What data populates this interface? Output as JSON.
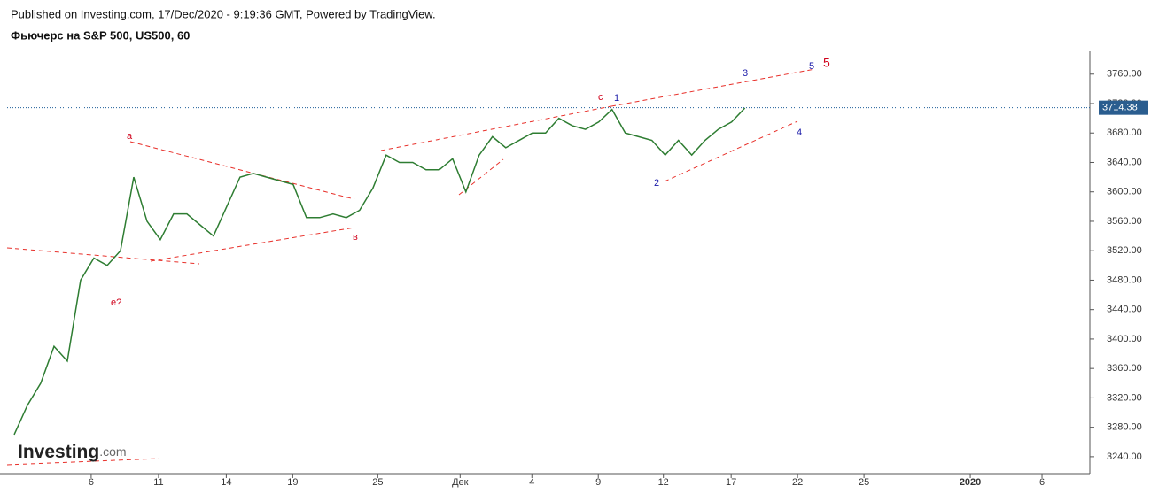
{
  "header": {
    "published": "Published on Investing.com, 17/Dec/2020 - 9:19:36 GMT, Powered by TradingView.",
    "title": "Фьючерс на S&P 500, US500, 60"
  },
  "logo": {
    "name": "Investing",
    "suffix": ".com"
  },
  "chart_data": {
    "type": "line",
    "color": "#2e7d32",
    "values": [
      3270,
      3310,
      3340,
      3390,
      3370,
      3480,
      3510,
      3500,
      3520,
      3620,
      3560,
      3535,
      3570,
      3570,
      3555,
      3540,
      3580,
      3620,
      3625,
      3620,
      3615,
      3610,
      3565,
      3565,
      3570,
      3565,
      3575,
      3605,
      3650,
      3640,
      3640,
      3630,
      3630,
      3645,
      3600,
      3650,
      3675,
      3660,
      3670,
      3680,
      3680,
      3700,
      3690,
      3685,
      3695,
      3712,
      3680,
      3675,
      3670,
      3650,
      3670,
      3650,
      3670,
      3685,
      3695,
      3714
    ],
    "xlim": [
      0,
      81.5
    ],
    "xticks": [
      {
        "value": 6.33,
        "label": "6"
      },
      {
        "value": 11.4,
        "label": "11"
      },
      {
        "value": 16.5,
        "label": "14"
      },
      {
        "value": 21.5,
        "label": "19"
      },
      {
        "value": 27.9,
        "label": "25"
      },
      {
        "value": 34.1,
        "label": "Дек"
      },
      {
        "value": 39.5,
        "label": "4"
      },
      {
        "value": 44.5,
        "label": "9"
      },
      {
        "value": 49.4,
        "label": "12"
      },
      {
        "value": 54.5,
        "label": "17"
      },
      {
        "value": 59.5,
        "label": "22"
      },
      {
        "value": 64.5,
        "label": "25"
      },
      {
        "value": 72.5,
        "label": "2020"
      },
      {
        "value": 77.9,
        "label": "6"
      }
    ],
    "ylim": [
      3217,
      3791
    ],
    "yticks": [
      {
        "value": 3240,
        "label": "3240.00"
      },
      {
        "value": 3280,
        "label": "3280.00"
      },
      {
        "value": 3320,
        "label": "3320.00"
      },
      {
        "value": 3360,
        "label": "3360.00"
      },
      {
        "value": 3400,
        "label": "3400.00"
      },
      {
        "value": 3440,
        "label": "3440.00"
      },
      {
        "value": 3480,
        "label": "3480.00"
      },
      {
        "value": 3520,
        "label": "3520.00"
      },
      {
        "value": 3560,
        "label": "3560.00"
      },
      {
        "value": 3600,
        "label": "3600.00"
      },
      {
        "value": 3640,
        "label": "3640.00"
      },
      {
        "value": 3680,
        "label": "3680.00"
      },
      {
        "value": 3720,
        "label": "3720.00"
      },
      {
        "value": 3760,
        "label": "3760.00"
      }
    ],
    "last_price": 3714.38,
    "annotations": [
      "a",
      "в",
      "e?",
      "c",
      "1",
      "2",
      "3",
      "4",
      "5",
      "5"
    ]
  }
}
